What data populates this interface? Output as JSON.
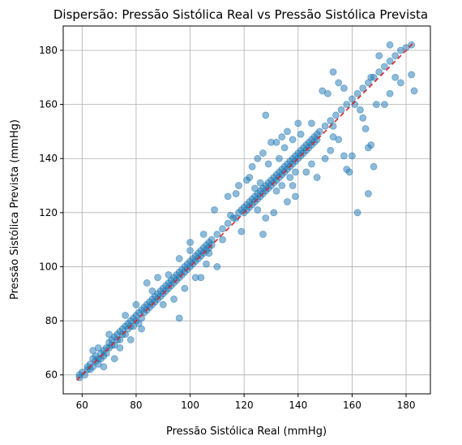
{
  "chart_data": {
    "type": "scatter",
    "title": "Dispersão:  Pressão Sistólica Real vs  Pressão Sistólica Prevista",
    "xlabel": "Pressão Sistólica Real (mmHg)",
    "ylabel": "Pressão Sistólica Prevista (mmHg)",
    "xlim": [
      53,
      189
    ],
    "ylim": [
      53,
      189
    ],
    "xticks": [
      "60",
      "80",
      "100",
      "120",
      "140",
      "160",
      "180"
    ],
    "yticks": [
      "60",
      "80",
      "100",
      "120",
      "140",
      "160",
      "180"
    ],
    "grid": true,
    "point_color": "#1f77b4",
    "reference_line": {
      "style": "dashed",
      "color": "#d62728",
      "x": [
        58,
        183
      ],
      "y": [
        58,
        183
      ]
    },
    "points": [
      [
        59,
        59
      ],
      [
        59,
        60
      ],
      [
        60,
        61
      ],
      [
        61,
        60
      ],
      [
        62,
        63
      ],
      [
        62,
        62
      ],
      [
        63,
        64
      ],
      [
        63,
        62
      ],
      [
        64,
        66
      ],
      [
        64,
        63
      ],
      [
        65,
        65
      ],
      [
        65,
        67
      ],
      [
        66,
        64
      ],
      [
        66,
        66
      ],
      [
        67,
        68
      ],
      [
        67,
        66
      ],
      [
        68,
        69
      ],
      [
        68,
        67
      ],
      [
        69,
        70
      ],
      [
        69,
        68
      ],
      [
        70,
        72
      ],
      [
        70,
        70
      ],
      [
        71,
        71
      ],
      [
        71,
        73
      ],
      [
        72,
        74
      ],
      [
        72,
        71
      ],
      [
        73,
        73
      ],
      [
        73,
        75
      ],
      [
        74,
        76
      ],
      [
        74,
        73
      ],
      [
        75,
        75
      ],
      [
        75,
        77
      ],
      [
        76,
        78
      ],
      [
        76,
        75
      ],
      [
        77,
        79
      ],
      [
        77,
        77
      ],
      [
        78,
        80
      ],
      [
        78,
        78
      ],
      [
        79,
        78
      ],
      [
        79,
        81
      ],
      [
        80,
        82
      ],
      [
        80,
        80
      ],
      [
        81,
        79
      ],
      [
        81,
        83
      ],
      [
        82,
        84
      ],
      [
        82,
        81
      ],
      [
        83,
        85
      ],
      [
        83,
        83
      ],
      [
        84,
        86
      ],
      [
        84,
        84
      ],
      [
        85,
        87
      ],
      [
        85,
        85
      ],
      [
        86,
        88
      ],
      [
        86,
        86
      ],
      [
        87,
        89
      ],
      [
        87,
        87
      ],
      [
        88,
        90
      ],
      [
        88,
        88
      ],
      [
        89,
        91
      ],
      [
        89,
        89
      ],
      [
        90,
        92
      ],
      [
        90,
        90
      ],
      [
        91,
        93
      ],
      [
        91,
        91
      ],
      [
        92,
        94
      ],
      [
        92,
        92
      ],
      [
        93,
        95
      ],
      [
        93,
        93
      ],
      [
        94,
        96
      ],
      [
        94,
        94
      ],
      [
        95,
        97
      ],
      [
        95,
        95
      ],
      [
        96,
        98
      ],
      [
        96,
        96
      ],
      [
        97,
        99
      ],
      [
        97,
        97
      ],
      [
        98,
        100
      ],
      [
        98,
        98
      ],
      [
        99,
        101
      ],
      [
        99,
        99
      ],
      [
        100,
        102
      ],
      [
        100,
        100
      ],
      [
        101,
        103
      ],
      [
        101,
        101
      ],
      [
        102,
        104
      ],
      [
        102,
        102
      ],
      [
        103,
        105
      ],
      [
        103,
        103
      ],
      [
        104,
        106
      ],
      [
        104,
        104
      ],
      [
        105,
        107
      ],
      [
        105,
        105
      ],
      [
        106,
        108
      ],
      [
        106,
        106
      ],
      [
        107,
        109
      ],
      [
        107,
        107
      ],
      [
        108,
        110
      ],
      [
        108,
        108
      ],
      [
        110,
        112
      ],
      [
        112,
        114
      ],
      [
        114,
        116
      ],
      [
        116,
        118
      ],
      [
        117,
        118
      ],
      [
        118,
        120
      ],
      [
        119,
        121
      ],
      [
        120,
        120
      ],
      [
        120,
        122
      ],
      [
        121,
        121
      ],
      [
        121,
        123
      ],
      [
        122,
        124
      ],
      [
        122,
        122
      ],
      [
        123,
        125
      ],
      [
        123,
        123
      ],
      [
        124,
        126
      ],
      [
        124,
        124
      ],
      [
        125,
        127
      ],
      [
        125,
        125
      ],
      [
        126,
        128
      ],
      [
        126,
        126
      ],
      [
        127,
        129
      ],
      [
        127,
        127
      ],
      [
        128,
        130
      ],
      [
        128,
        128
      ],
      [
        129,
        131
      ],
      [
        129,
        129
      ],
      [
        130,
        132
      ],
      [
        130,
        130
      ],
      [
        131,
        133
      ],
      [
        131,
        131
      ],
      [
        132,
        134
      ],
      [
        132,
        132
      ],
      [
        133,
        135
      ],
      [
        133,
        133
      ],
      [
        134,
        136
      ],
      [
        134,
        134
      ],
      [
        135,
        137
      ],
      [
        135,
        135
      ],
      [
        136,
        138
      ],
      [
        136,
        136
      ],
      [
        137,
        139
      ],
      [
        137,
        137
      ],
      [
        138,
        140
      ],
      [
        138,
        138
      ],
      [
        139,
        141
      ],
      [
        139,
        139
      ],
      [
        140,
        142
      ],
      [
        140,
        140
      ],
      [
        141,
        143
      ],
      [
        141,
        141
      ],
      [
        142,
        144
      ],
      [
        142,
        142
      ],
      [
        143,
        145
      ],
      [
        143,
        143
      ],
      [
        144,
        146
      ],
      [
        144,
        144
      ],
      [
        145,
        147
      ],
      [
        145,
        145
      ],
      [
        146,
        148
      ],
      [
        146,
        146
      ],
      [
        147,
        149
      ],
      [
        147,
        147
      ],
      [
        148,
        150
      ],
      [
        150,
        152
      ],
      [
        152,
        154
      ],
      [
        154,
        156
      ],
      [
        156,
        158
      ],
      [
        158,
        160
      ],
      [
        160,
        162
      ],
      [
        162,
        164
      ],
      [
        164,
        166
      ],
      [
        166,
        168
      ],
      [
        168,
        170
      ],
      [
        170,
        172
      ],
      [
        172,
        174
      ],
      [
        174,
        176
      ],
      [
        176,
        178
      ],
      [
        178,
        180
      ],
      [
        180,
        181
      ],
      [
        182,
        182
      ],
      [
        96,
        81
      ],
      [
        104,
        96
      ],
      [
        107,
        105
      ],
      [
        100,
        109
      ],
      [
        110,
        100
      ],
      [
        112,
        110
      ],
      [
        117,
        127
      ],
      [
        125,
        121
      ],
      [
        127,
        112
      ],
      [
        128,
        156
      ],
      [
        130,
        146
      ],
      [
        136,
        124
      ],
      [
        125,
        140
      ],
      [
        134,
        148
      ],
      [
        138,
        130
      ],
      [
        145,
        153
      ],
      [
        150,
        140
      ],
      [
        152,
        143
      ],
      [
        153,
        152
      ],
      [
        155,
        147
      ],
      [
        157,
        141
      ],
      [
        158,
        136
      ],
      [
        159,
        135
      ],
      [
        160,
        141
      ],
      [
        162,
        120
      ],
      [
        165,
        151
      ],
      [
        164,
        155
      ],
      [
        166,
        144
      ],
      [
        166,
        127
      ],
      [
        167,
        145
      ],
      [
        168,
        137
      ],
      [
        169,
        160
      ],
      [
        172,
        160
      ],
      [
        174,
        164
      ],
      [
        176,
        170
      ],
      [
        178,
        168
      ],
      [
        182,
        171
      ],
      [
        183,
        165
      ],
      [
        153,
        172
      ],
      [
        155,
        168
      ],
      [
        157,
        166
      ],
      [
        161,
        160
      ],
      [
        163,
        158
      ],
      [
        151,
        164
      ],
      [
        149,
        165
      ],
      [
        174,
        182
      ],
      [
        170,
        178
      ],
      [
        167,
        170
      ],
      [
        153,
        148
      ],
      [
        147,
        133
      ],
      [
        114,
        126
      ],
      [
        118,
        130
      ],
      [
        115,
        119
      ],
      [
        109,
        121
      ],
      [
        123,
        137
      ],
      [
        121,
        132
      ],
      [
        127,
        142
      ],
      [
        132,
        146
      ],
      [
        136,
        150
      ],
      [
        140,
        153
      ],
      [
        131,
        120
      ],
      [
        128,
        118
      ],
      [
        139,
        126
      ],
      [
        143,
        135
      ],
      [
        145,
        138
      ],
      [
        141,
        149
      ],
      [
        138,
        147
      ],
      [
        119,
        113
      ],
      [
        133,
        140
      ],
      [
        135,
        144
      ],
      [
        129,
        138
      ],
      [
        126,
        131
      ],
      [
        122,
        133
      ],
      [
        124,
        129
      ],
      [
        137,
        133
      ],
      [
        139,
        135
      ],
      [
        134,
        130
      ],
      [
        132,
        128
      ],
      [
        86,
        91
      ],
      [
        88,
        96
      ],
      [
        92,
        97
      ],
      [
        94,
        88
      ],
      [
        90,
        86
      ],
      [
        84,
        94
      ],
      [
        82,
        77
      ],
      [
        78,
        73
      ],
      [
        74,
        70
      ],
      [
        70,
        75
      ],
      [
        66,
        70
      ],
      [
        64,
        69
      ],
      [
        68,
        63
      ],
      [
        72,
        66
      ],
      [
        76,
        82
      ],
      [
        80,
        86
      ],
      [
        98,
        92
      ],
      [
        102,
        96
      ],
      [
        106,
        101
      ],
      [
        105,
        112
      ],
      [
        100,
        106
      ],
      [
        96,
        103
      ]
    ]
  }
}
